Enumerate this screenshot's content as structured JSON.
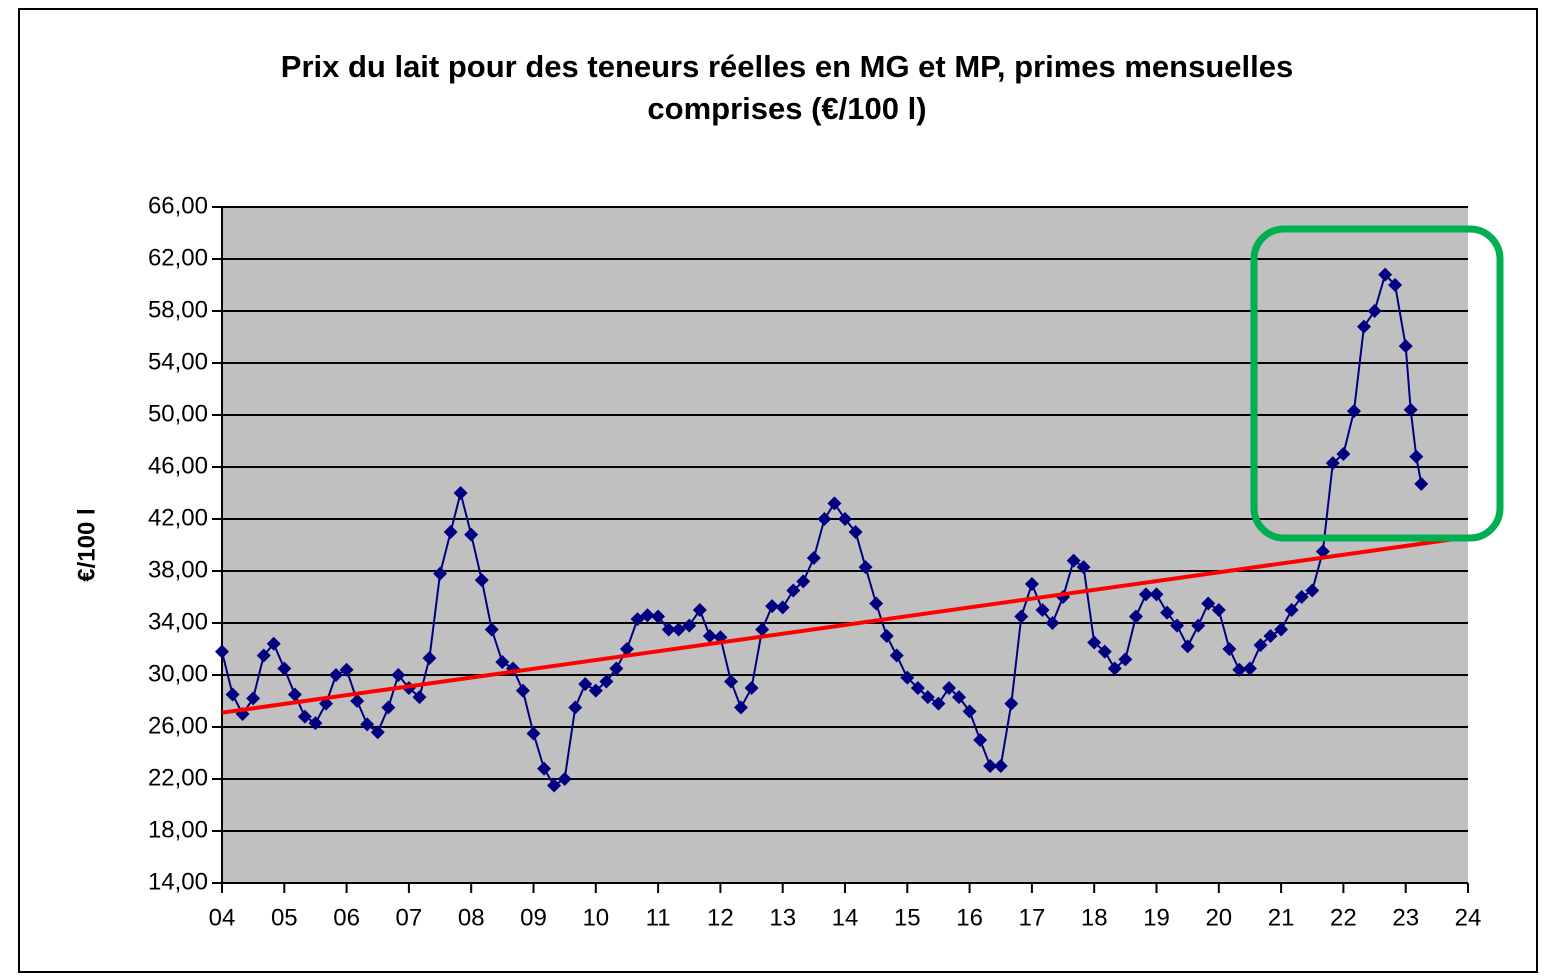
{
  "chart_data": {
    "type": "line",
    "title": "Prix du lait pour des teneurs réelles en MG et MP, primes mensuelles comprises (€/100 l)",
    "y_label": "€/100 l",
    "x": [
      2004,
      2004.17,
      2004.33,
      2004.5,
      2004.67,
      2004.83,
      2005,
      2005.17,
      2005.33,
      2005.5,
      2005.67,
      2005.83,
      2006,
      2006.17,
      2006.33,
      2006.5,
      2006.67,
      2006.83,
      2007,
      2007.17,
      2007.33,
      2007.5,
      2007.67,
      2007.83,
      2008,
      2008.17,
      2008.33,
      2008.5,
      2008.67,
      2008.83,
      2009,
      2009.17,
      2009.33,
      2009.5,
      2009.67,
      2009.83,
      2010,
      2010.17,
      2010.33,
      2010.5,
      2010.67,
      2010.83,
      2011,
      2011.17,
      2011.33,
      2011.5,
      2011.67,
      2011.83,
      2012,
      2012.17,
      2012.33,
      2012.5,
      2012.67,
      2012.83,
      2013,
      2013.17,
      2013.33,
      2013.5,
      2013.67,
      2013.83,
      2014,
      2014.17,
      2014.33,
      2014.5,
      2014.67,
      2014.83,
      2015,
      2015.17,
      2015.33,
      2015.5,
      2015.67,
      2015.83,
      2016,
      2016.17,
      2016.33,
      2016.5,
      2016.67,
      2016.83,
      2017,
      2017.17,
      2017.33,
      2017.5,
      2017.67,
      2017.83,
      2018,
      2018.17,
      2018.33,
      2018.5,
      2018.67,
      2018.83,
      2019,
      2019.17,
      2019.33,
      2019.5,
      2019.67,
      2019.83,
      2020,
      2020.17,
      2020.33,
      2020.5,
      2020.67,
      2020.83,
      2021,
      2021.17,
      2021.33,
      2021.5,
      2021.67,
      2021.83,
      2022,
      2022.17,
      2022.33,
      2022.5,
      2022.67,
      2022.83,
      2023,
      2023.08,
      2023.17,
      2023.25
    ],
    "series": [
      {
        "color": "#000080",
        "values": [
          31.8,
          28.5,
          27.0,
          28.2,
          31.5,
          32.4,
          30.5,
          28.5,
          26.8,
          26.3,
          27.8,
          30.0,
          30.4,
          28.0,
          26.2,
          25.6,
          27.5,
          30.0,
          29.0,
          28.3,
          31.3,
          37.8,
          41.0,
          44.0,
          40.8,
          37.3,
          33.5,
          31.0,
          30.5,
          28.8,
          25.5,
          22.8,
          21.5,
          22.0,
          27.5,
          29.3,
          28.8,
          29.5,
          30.5,
          32.0,
          34.3,
          34.6,
          34.5,
          33.5,
          33.5,
          33.8,
          35.0,
          33.0,
          32.9,
          29.5,
          27.5,
          29.0,
          33.5,
          35.3,
          35.2,
          36.5,
          37.2,
          39.0,
          42.0,
          43.2,
          42.0,
          41.0,
          38.3,
          35.5,
          33.0,
          31.5,
          29.8,
          29.0,
          28.3,
          27.8,
          29.0,
          28.3,
          27.2,
          25.0,
          23.0,
          23.0,
          27.8,
          34.5,
          37.0,
          35.0,
          34.0,
          36.0,
          38.8,
          38.3,
          32.5,
          31.8,
          30.5,
          31.2,
          34.5,
          36.2,
          36.2,
          34.8,
          33.8,
          32.2,
          33.8,
          35.5,
          35.0,
          32.0,
          30.4,
          30.5,
          32.3,
          33.0,
          33.5,
          35.0,
          36.0,
          36.5,
          39.5,
          46.3,
          47.0,
          50.3,
          56.8,
          58.0,
          60.8,
          60.0,
          55.3,
          50.4,
          46.8,
          44.7
        ]
      }
    ],
    "trendline": {
      "x": [
        2004,
        2024
      ],
      "values": [
        27.1,
        40.6
      ],
      "color": "#ff0000"
    },
    "xlim": [
      2004,
      2024
    ],
    "xticks": [
      {
        "value": 2004,
        "label": "04"
      },
      {
        "value": 2005,
        "label": "05"
      },
      {
        "value": 2006,
        "label": "06"
      },
      {
        "value": 2007,
        "label": "07"
      },
      {
        "value": 2008,
        "label": "08"
      },
      {
        "value": 2009,
        "label": "09"
      },
      {
        "value": 2010,
        "label": "10"
      },
      {
        "value": 2011,
        "label": "11"
      },
      {
        "value": 2012,
        "label": "12"
      },
      {
        "value": 2013,
        "label": "13"
      },
      {
        "value": 2014,
        "label": "14"
      },
      {
        "value": 2015,
        "label": "15"
      },
      {
        "value": 2016,
        "label": "16"
      },
      {
        "value": 2017,
        "label": "17"
      },
      {
        "value": 2018,
        "label": "18"
      },
      {
        "value": 2019,
        "label": "19"
      },
      {
        "value": 2020,
        "label": "20"
      },
      {
        "value": 2021,
        "label": "21"
      },
      {
        "value": 2022,
        "label": "22"
      },
      {
        "value": 2023,
        "label": "23"
      },
      {
        "value": 2024,
        "label": "24"
      }
    ],
    "ylim": [
      14,
      66
    ],
    "yticks": [
      {
        "value": 14,
        "label": "14,00"
      },
      {
        "value": 18,
        "label": "18,00"
      },
      {
        "value": 22,
        "label": "22,00"
      },
      {
        "value": 26,
        "label": "26,00"
      },
      {
        "value": 30,
        "label": "30,00"
      },
      {
        "value": 34,
        "label": "34,00"
      },
      {
        "value": 38,
        "label": "38,00"
      },
      {
        "value": 42,
        "label": "42,00"
      },
      {
        "value": 46,
        "label": "46,00"
      },
      {
        "value": 50,
        "label": "50,00"
      },
      {
        "value": 54,
        "label": "54,00"
      },
      {
        "value": 58,
        "label": "58,00"
      },
      {
        "value": 62,
        "label": "62,00"
      },
      {
        "value": 66,
        "label": "66,00"
      }
    ],
    "grid": true,
    "plot_background": "#c0c0c0"
  }
}
